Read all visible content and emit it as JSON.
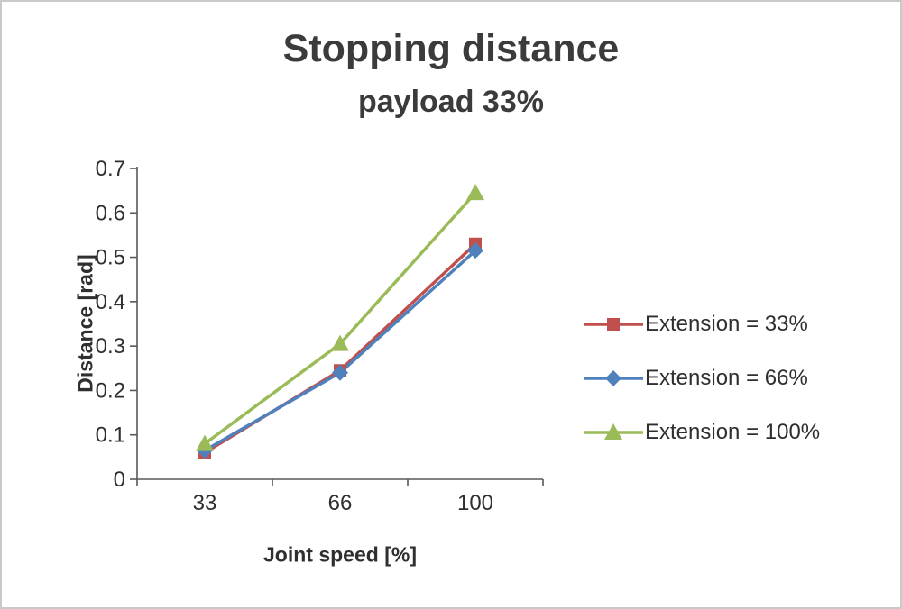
{
  "chart_data": {
    "type": "line",
    "title": "Stopping distance",
    "subtitle": "payload 33%",
    "xlabel": "Joint speed [%]",
    "ylabel": "Distance [rad]",
    "categories": [
      "33",
      "66",
      "100"
    ],
    "ylim": [
      0,
      0.7
    ],
    "yticks": [
      "0",
      "0.1",
      "0.2",
      "0.3",
      "0.4",
      "0.5",
      "0.6",
      "0.7"
    ],
    "grid": false,
    "legend_position": "right",
    "series": [
      {
        "name": "Extension = 33%",
        "color": "#c0504d",
        "marker": "square",
        "values": [
          0.06,
          0.245,
          0.53
        ]
      },
      {
        "name": "Extension = 66%",
        "color": "#4f81bd",
        "marker": "diamond",
        "values": [
          0.065,
          0.24,
          0.515
        ]
      },
      {
        "name": "Extension = 100%",
        "color": "#9bbb59",
        "marker": "triangle",
        "values": [
          0.08,
          0.305,
          0.645
        ]
      }
    ]
  }
}
